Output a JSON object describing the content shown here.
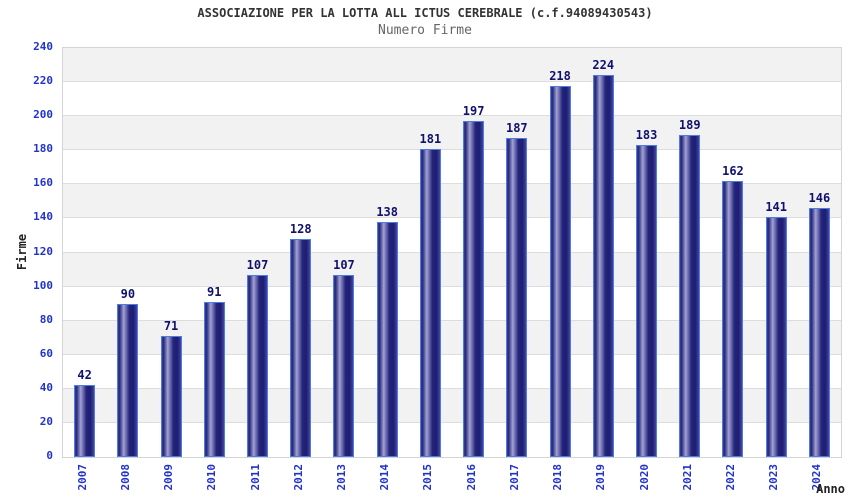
{
  "chart_data": {
    "type": "bar",
    "title": "ASSOCIAZIONE PER LA LOTTA ALL ICTUS CEREBRALE (c.f.94089430543)",
    "subtitle": "Numero Firme",
    "xlabel": "Anno",
    "ylabel": "Firme",
    "categories": [
      "2007",
      "2008",
      "2009",
      "2010",
      "2011",
      "2012",
      "2013",
      "2014",
      "2015",
      "2016",
      "2017",
      "2018",
      "2019",
      "2020",
      "2021",
      "2022",
      "2023",
      "2024"
    ],
    "values": [
      42,
      90,
      71,
      91,
      107,
      128,
      107,
      138,
      181,
      197,
      187,
      218,
      224,
      183,
      189,
      162,
      141,
      146
    ],
    "ylim": [
      0,
      240
    ],
    "ytick_step": 20,
    "grid": true,
    "legend": "none",
    "band_fill_alternating": true,
    "colors": {
      "title": "#333333",
      "subtitle": "#666666",
      "axis_tick_label": "#2233cc",
      "value_label": "#10106e",
      "axis_title": "#222222",
      "band_gray": "#f2f2f2",
      "gridline": "#dddddd",
      "plot_border": "#d4d4d4",
      "bar_border": "#4a7de6",
      "bar_gradient": [
        "#3d3d8f",
        "#26267c",
        "#a2a2d4",
        "#23237a",
        "#1e1e74",
        "#4646a0"
      ]
    }
  }
}
